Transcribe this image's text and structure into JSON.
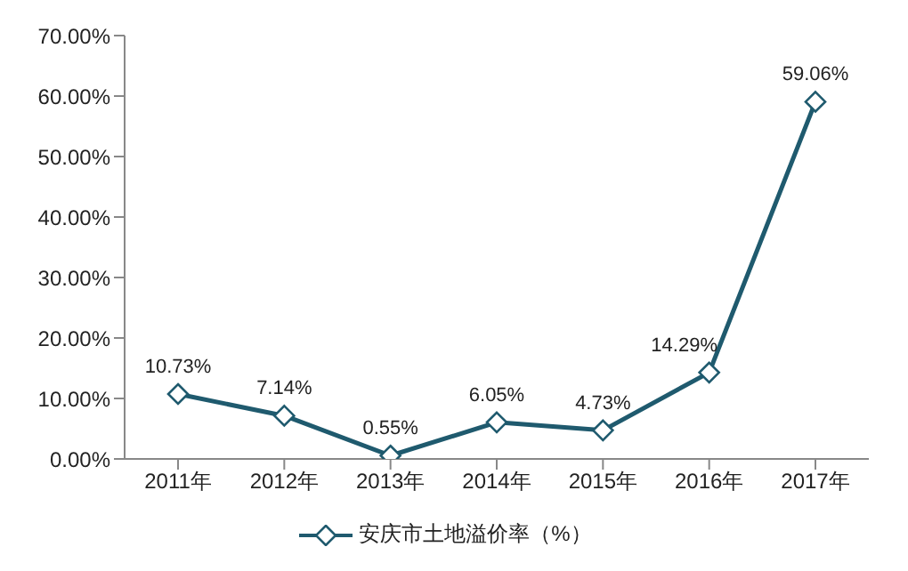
{
  "chart_data": {
    "type": "line",
    "categories": [
      "2011年",
      "2012年",
      "2013年",
      "2014年",
      "2015年",
      "2016年",
      "2017年"
    ],
    "series": [
      {
        "name": "安庆市土地溢价率（%）",
        "color": "#1f5a6e",
        "values": [
          10.73,
          7.14,
          0.55,
          6.05,
          4.73,
          14.29,
          59.06
        ],
        "value_labels": [
          "10.73%",
          "7.14%",
          "0.55%",
          "6.05%",
          "4.73%",
          "14.29%",
          "59.06%"
        ]
      }
    ],
    "ylim": [
      0,
      70
    ],
    "yticks": [
      {
        "value": 0,
        "label": "0.00%"
      },
      {
        "value": 10,
        "label": "10.00%"
      },
      {
        "value": 20,
        "label": "20.00%"
      },
      {
        "value": 30,
        "label": "30.00%"
      },
      {
        "value": 40,
        "label": "40.00%"
      },
      {
        "value": 50,
        "label": "50.00%"
      },
      {
        "value": 60,
        "label": "60.00%"
      },
      {
        "value": 70,
        "label": "70.00%"
      }
    ],
    "grid": false,
    "legend": "bottom",
    "marker": "diamond",
    "line_style": "solid"
  }
}
